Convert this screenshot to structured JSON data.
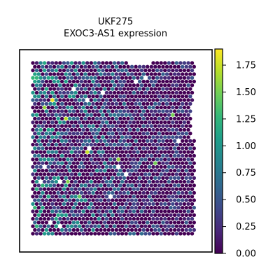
{
  "chart_data": {
    "type": "heatmap",
    "title_line1": "UKF275",
    "title_line2": "EXOC3-AS1 expression",
    "colorbar": {
      "range": [
        0.0,
        1.9
      ],
      "ticks": [
        "0.00",
        "0.25",
        "0.50",
        "0.75",
        "1.00",
        "1.25",
        "1.50",
        "1.75"
      ],
      "tick_values": [
        0.0,
        0.25,
        0.5,
        0.75,
        1.0,
        1.25,
        1.5,
        1.75
      ],
      "colormap": "viridis"
    },
    "axes": {
      "x_ticks": false,
      "y_ticks": false
    },
    "spots": {
      "grid_columns": 42,
      "grid_rows": 48,
      "value_range": [
        0.0,
        1.88
      ],
      "hotspots": [
        {
          "col": 5,
          "row": 10,
          "value": 1.85
        },
        {
          "col": 3,
          "row": 12,
          "value": 1.6
        },
        {
          "col": 8,
          "row": 15,
          "value": 1.7
        },
        {
          "col": 14,
          "row": 24,
          "value": 1.75
        },
        {
          "col": 9,
          "row": 32,
          "value": 1.55
        },
        {
          "col": 22,
          "row": 26,
          "value": 1.6
        },
        {
          "col": 31,
          "row": 27,
          "value": 1.5
        },
        {
          "col": 36,
          "row": 14,
          "value": 1.5
        },
        {
          "col": 12,
          "row": 36,
          "value": 1.45
        }
      ]
    },
    "colors": {
      "viridis_low": "#440154",
      "viridis_high": "#fde725",
      "frame": "#000000"
    }
  }
}
